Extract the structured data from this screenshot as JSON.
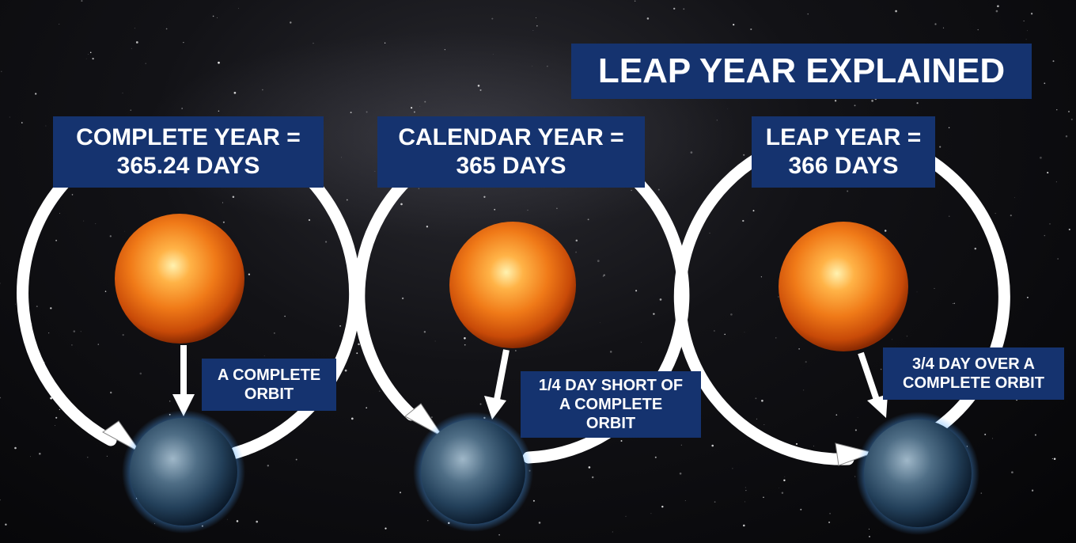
{
  "title": "LEAP YEAR EXPLAINED",
  "panels": [
    {
      "heading_line1": "COMPLETE YEAR =",
      "heading_line2": "365.24 DAYS",
      "note_line1": "A COMPLETE",
      "note_line2": "ORBIT",
      "note_line3": ""
    },
    {
      "heading_line1": "CALENDAR YEAR =",
      "heading_line2": "365 DAYS",
      "note_line1": "1/4 DAY SHORT OF",
      "note_line2": "A COMPLETE",
      "note_line3": "ORBIT"
    },
    {
      "heading_line1": "LEAP YEAR =",
      "heading_line2": "366 DAYS",
      "note_line1": "3/4 DAY OVER A",
      "note_line2": "COMPLETE ORBIT",
      "note_line3": ""
    }
  ],
  "colors": {
    "label_background": "#15336f",
    "label_text": "#ffffff",
    "orbit": "#ffffff",
    "space": "#0a0a0d"
  },
  "icons": [
    "sun-icon",
    "earth-icon",
    "orbit-arrow-icon",
    "pointer-arrow-icon",
    "starfield"
  ]
}
